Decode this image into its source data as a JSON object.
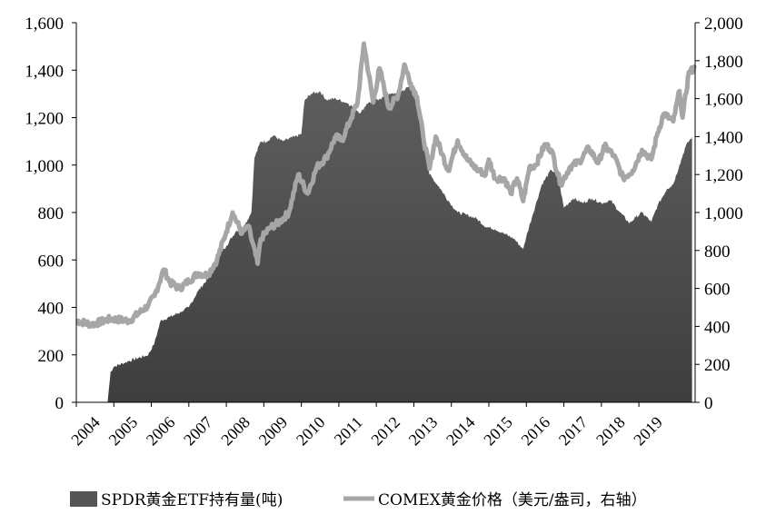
{
  "chart_data": {
    "type": "area",
    "x_axis": {
      "type": "date",
      "range": [
        "2004-01",
        "2019-09"
      ],
      "tick_labels": [
        "2004",
        "2005",
        "2006",
        "2007",
        "2008",
        "2009",
        "2010",
        "2011",
        "2012",
        "2013",
        "2014",
        "2015",
        "2016",
        "2017",
        "2018",
        "2019"
      ],
      "label_rotation_deg": -45
    },
    "y_left": {
      "range": [
        0,
        1600
      ],
      "ticks": [
        0,
        200,
        400,
        600,
        800,
        1000,
        1200,
        1400,
        1600
      ],
      "tick_labels": [
        "0",
        "200",
        "400",
        "600",
        "800",
        "1,000",
        "1,200",
        "1,400",
        "1,600"
      ]
    },
    "y_right": {
      "range": [
        0,
        2000
      ],
      "ticks": [
        0,
        200,
        400,
        600,
        800,
        1000,
        1200,
        1400,
        1600,
        1800,
        2000
      ],
      "tick_labels": [
        "0",
        "200",
        "400",
        "600",
        "800",
        "1,000",
        "1,200",
        "1,400",
        "1,600",
        "1,800",
        "2,000"
      ]
    },
    "grid": false,
    "legend_position": "bottom",
    "series": [
      {
        "name": "SPDR黄金ETF持有量(吨)",
        "type": "area",
        "axis": "left",
        "color": "#555555",
        "points": [
          [
            "2004-11",
            0
          ],
          [
            "2004-12",
            130
          ],
          [
            "2005-01",
            150
          ],
          [
            "2005-06",
            175
          ],
          [
            "2005-12",
            200
          ],
          [
            "2006-02",
            250
          ],
          [
            "2006-04",
            345
          ],
          [
            "2006-07",
            360
          ],
          [
            "2006-11",
            385
          ],
          [
            "2007-01",
            400
          ],
          [
            "2007-04",
            470
          ],
          [
            "2007-07",
            520
          ],
          [
            "2007-10",
            610
          ],
          [
            "2008-01",
            660
          ],
          [
            "2008-04",
            720
          ],
          [
            "2008-07",
            750
          ],
          [
            "2008-09",
            800
          ],
          [
            "2008-10",
            1030
          ],
          [
            "2008-12",
            1100
          ],
          [
            "2009-02",
            1100
          ],
          [
            "2009-04",
            1125
          ],
          [
            "2009-07",
            1100
          ],
          [
            "2009-11",
            1120
          ],
          [
            "2010-01",
            1130
          ],
          [
            "2010-02",
            1270
          ],
          [
            "2010-04",
            1300
          ],
          [
            "2010-07",
            1310
          ],
          [
            "2010-09",
            1275
          ],
          [
            "2010-12",
            1280
          ],
          [
            "2011-04",
            1260
          ],
          [
            "2011-08",
            1220
          ],
          [
            "2011-10",
            1260
          ],
          [
            "2012-02",
            1280
          ],
          [
            "2012-06",
            1300
          ],
          [
            "2012-09",
            1310
          ],
          [
            "2012-12",
            1335
          ],
          [
            "2013-02",
            1260
          ],
          [
            "2013-04",
            1100
          ],
          [
            "2013-06",
            960
          ],
          [
            "2013-09",
            910
          ],
          [
            "2013-12",
            850
          ],
          [
            "2014-03",
            800
          ],
          [
            "2014-06",
            790
          ],
          [
            "2014-09",
            775
          ],
          [
            "2014-12",
            740
          ],
          [
            "2015-03",
            730
          ],
          [
            "2015-06",
            710
          ],
          [
            "2015-09",
            690
          ],
          [
            "2015-12",
            645
          ],
          [
            "2016-01",
            700
          ],
          [
            "2016-03",
            790
          ],
          [
            "2016-06",
            920
          ],
          [
            "2016-09",
            980
          ],
          [
            "2016-11",
            960
          ],
          [
            "2017-01",
            820
          ],
          [
            "2017-04",
            860
          ],
          [
            "2017-07",
            840
          ],
          [
            "2017-10",
            860
          ],
          [
            "2018-01",
            840
          ],
          [
            "2018-04",
            850
          ],
          [
            "2018-07",
            800
          ],
          [
            "2018-10",
            755
          ],
          [
            "2018-12",
            780
          ],
          [
            "2019-02",
            800
          ],
          [
            "2019-05",
            760
          ],
          [
            "2019-07",
            830
          ],
          [
            "2019-10",
            900
          ],
          [
            "2019-12",
            920
          ],
          [
            "2020-02",
            1000
          ],
          [
            "2020-04",
            1080
          ],
          [
            "2020-06",
            1120
          ]
        ]
      },
      {
        "name": "COMEX黄金价格（美元/盎司，右轴）",
        "type": "line",
        "axis": "right",
        "color": "#a6a6a6",
        "points": [
          [
            "2004-01",
            430
          ],
          [
            "2004-06",
            410
          ],
          [
            "2004-12",
            440
          ],
          [
            "2005-06",
            430
          ],
          [
            "2005-12",
            510
          ],
          [
            "2006-02",
            560
          ],
          [
            "2006-05",
            700
          ],
          [
            "2006-07",
            630
          ],
          [
            "2006-10",
            600
          ],
          [
            "2007-01",
            640
          ],
          [
            "2007-04",
            680
          ],
          [
            "2007-07",
            670
          ],
          [
            "2007-10",
            750
          ],
          [
            "2008-01",
            900
          ],
          [
            "2008-03",
            1000
          ],
          [
            "2008-06",
            890
          ],
          [
            "2008-08",
            930
          ],
          [
            "2008-11",
            730
          ],
          [
            "2008-12",
            860
          ],
          [
            "2009-03",
            920
          ],
          [
            "2009-06",
            950
          ],
          [
            "2009-09",
            1000
          ],
          [
            "2009-12",
            1200
          ],
          [
            "2010-03",
            1100
          ],
          [
            "2010-06",
            1240
          ],
          [
            "2010-09",
            1290
          ],
          [
            "2010-12",
            1400
          ],
          [
            "2011-02",
            1380
          ],
          [
            "2011-05",
            1500
          ],
          [
            "2011-07",
            1580
          ],
          [
            "2011-09",
            1890
          ],
          [
            "2011-12",
            1580
          ],
          [
            "2012-02",
            1760
          ],
          [
            "2012-05",
            1550
          ],
          [
            "2012-08",
            1620
          ],
          [
            "2012-10",
            1780
          ],
          [
            "2012-12",
            1680
          ],
          [
            "2013-02",
            1610
          ],
          [
            "2013-04",
            1400
          ],
          [
            "2013-06",
            1230
          ],
          [
            "2013-08",
            1400
          ],
          [
            "2013-10",
            1310
          ],
          [
            "2013-12",
            1220
          ],
          [
            "2014-03",
            1380
          ],
          [
            "2014-06",
            1280
          ],
          [
            "2014-09",
            1230
          ],
          [
            "2014-12",
            1200
          ],
          [
            "2015-01",
            1280
          ],
          [
            "2015-03",
            1180
          ],
          [
            "2015-06",
            1180
          ],
          [
            "2015-08",
            1100
          ],
          [
            "2015-10",
            1180
          ],
          [
            "2015-12",
            1060
          ],
          [
            "2016-02",
            1240
          ],
          [
            "2016-04",
            1250
          ],
          [
            "2016-07",
            1360
          ],
          [
            "2016-09",
            1330
          ],
          [
            "2016-12",
            1150
          ],
          [
            "2017-03",
            1240
          ],
          [
            "2017-06",
            1270
          ],
          [
            "2017-09",
            1340
          ],
          [
            "2017-12",
            1260
          ],
          [
            "2018-02",
            1350
          ],
          [
            "2018-05",
            1300
          ],
          [
            "2018-08",
            1180
          ],
          [
            "2018-11",
            1220
          ],
          [
            "2019-02",
            1330
          ],
          [
            "2019-05",
            1280
          ],
          [
            "2019-07",
            1420
          ],
          [
            "2019-09",
            1520
          ],
          [
            "2019-12",
            1480
          ],
          [
            "2020-02",
            1640
          ],
          [
            "2020-03",
            1500
          ],
          [
            "2020-05",
            1740
          ],
          [
            "2020-07",
            1760
          ]
        ]
      }
    ]
  }
}
